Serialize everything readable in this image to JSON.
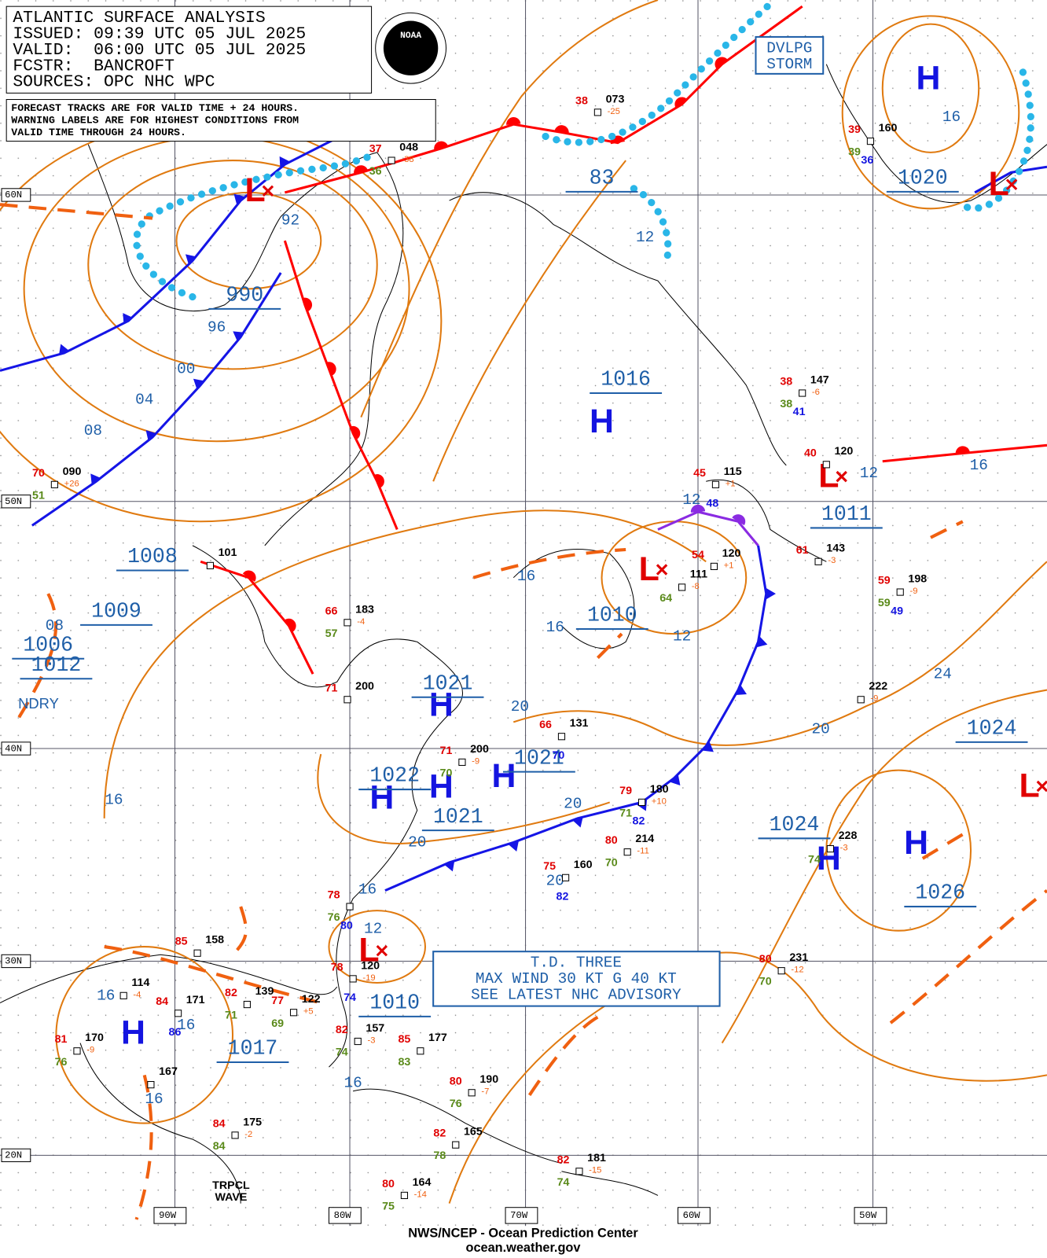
{
  "header": {
    "title": "ATLANTIC SURFACE ANALYSIS",
    "issued": "ISSUED: 09:39 UTC 05 JUL 2025",
    "valid": "VALID:  06:00 UTC 05 JUL 2025",
    "forecaster": "FCSTR:  BANCROFT",
    "sources": "SOURCES: OPC NHC WPC"
  },
  "logo": "NOAA",
  "notice": [
    "FORECAST TRACKS ARE FOR VALID TIME + 24 HOURS.",
    "WARNING LABELS ARE FOR HIGHEST CONDITIONS FROM",
    "VALID TIME THROUGH 24 HOURS."
  ],
  "advisory": [
    "T.D. THREE",
    "MAX WIND 30 KT G 40 KT",
    "SEE LATEST NHC ADVISORY"
  ],
  "storm_label": [
    "DVLPG",
    "STORM"
  ],
  "centers": [
    "H",
    "H",
    "L",
    "L",
    "L",
    "L",
    "L",
    "L",
    "H",
    "H",
    "H",
    "H",
    "H",
    "H",
    "H"
  ],
  "pressure_labels": [
    "990",
    "1016",
    "1020",
    "83",
    "1011",
    "1010",
    "1010",
    "1021",
    "1021",
    "1022",
    "1021",
    "1024",
    "1026",
    "1024",
    "1017",
    "1009",
    "1008",
    "1006",
    "1012"
  ],
  "isobar_labels": [
    "92",
    "96",
    "00",
    "04",
    "08",
    "12",
    "16",
    "12",
    "16",
    "12",
    "16",
    "16",
    "12",
    "24",
    "20",
    "20",
    "16",
    "20",
    "20",
    "16",
    "20",
    "12",
    "16",
    "16",
    "16",
    "16",
    "08"
  ],
  "lat_labels": [
    "60N",
    "50N",
    "40N",
    "30N",
    "20N"
  ],
  "lon_labels": [
    "90W",
    "80W",
    "70W",
    "60W",
    "50W"
  ],
  "stations": [
    {
      "temp": "38",
      "pressure": "073",
      "tendency": "-25"
    },
    {
      "temp": "39",
      "pressure": "160",
      "dew": "39",
      "extra": "36"
    },
    {
      "temp": "37",
      "pressure": "048",
      "tendency": "-38",
      "dew": "36"
    },
    {
      "temp": "38",
      "pressure": "147",
      "tendency": "-6",
      "dew": "38",
      "extra": "41"
    },
    {
      "temp": "40",
      "pressure": "120"
    },
    {
      "temp": "45",
      "pressure": "115",
      "tendency": "+1",
      "extra": "48"
    },
    {
      "temp": "70",
      "pressure": "090",
      "tendency": "+26",
      "dew": "51"
    },
    {
      "pressure": "101"
    },
    {
      "temp": "54",
      "pressure": "120",
      "tendency": "+1"
    },
    {
      "temp": "61",
      "pressure": "143",
      "tendency": "-3"
    },
    {
      "pressure": "111",
      "tendency": "-8",
      "dew": "64"
    },
    {
      "temp": "59",
      "pressure": "198",
      "tendency": "-9",
      "dew": "59",
      "extra": "49"
    },
    {
      "temp": "66",
      "pressure": "183",
      "tendency": "-4",
      "dew": "57"
    },
    {
      "temp": "71",
      "pressure": "200"
    },
    {
      "pressure": "222",
      "tendency": "-9"
    },
    {
      "temp": "66",
      "pressure": "131",
      "extra": "70"
    },
    {
      "temp": "71",
      "pressure": "200",
      "tendency": "-9",
      "dew": "70"
    },
    {
      "temp": "79",
      "pressure": "180",
      "tendency": "+10",
      "dew": "71",
      "extra": "82"
    },
    {
      "temp": "80",
      "pressure": "214",
      "tendency": "-11",
      "dew": "70"
    },
    {
      "temp": "75",
      "pressure": "160",
      "extra": "82"
    },
    {
      "pressure": "228",
      "tendency": "-3",
      "dew": "74"
    },
    {
      "temp": "85",
      "pressure": "158"
    },
    {
      "pressure": "114",
      "tendency": "-4"
    },
    {
      "temp": "84",
      "pressure": "171",
      "extra": "86"
    },
    {
      "temp": "82",
      "pressure": "139",
      "dew": "71"
    },
    {
      "temp": "77",
      "pressure": "122",
      "tendency": "+5",
      "dew": "69"
    },
    {
      "temp": "81",
      "pressure": "170",
      "tendency": "-9",
      "dew": "76"
    },
    {
      "pressure": "167"
    },
    {
      "temp": "82",
      "pressure": "157",
      "tendency": "-3",
      "dew": "74"
    },
    {
      "temp": "85",
      "pressure": "177",
      "dew": "83"
    },
    {
      "temp": "80",
      "pressure": "190",
      "tendency": "-7",
      "dew": "76"
    },
    {
      "temp": "80",
      "pressure": "231",
      "tendency": "-12",
      "dew": "70"
    },
    {
      "temp": "84",
      "pressure": "175",
      "tendency": "-2",
      "dew": "84"
    },
    {
      "temp": "82",
      "pressure": "165",
      "dew": "78"
    },
    {
      "temp": "82",
      "pressure": "181",
      "tendency": "-15",
      "dew": "74"
    },
    {
      "temp": "80",
      "pressure": "164",
      "tendency": "-14",
      "dew": "75"
    },
    {
      "temp": "78",
      "pressure": "120",
      "tendency": "-19",
      "extra": "74"
    },
    {
      "temp": "78",
      "dew": "76",
      "extra": "80"
    }
  ],
  "notes": [
    "NDRY",
    "TRPCL",
    "WAVE"
  ],
  "footer": [
    "NWS/NCEP - Ocean Prediction Center",
    "ocean.weather.gov"
  ]
}
